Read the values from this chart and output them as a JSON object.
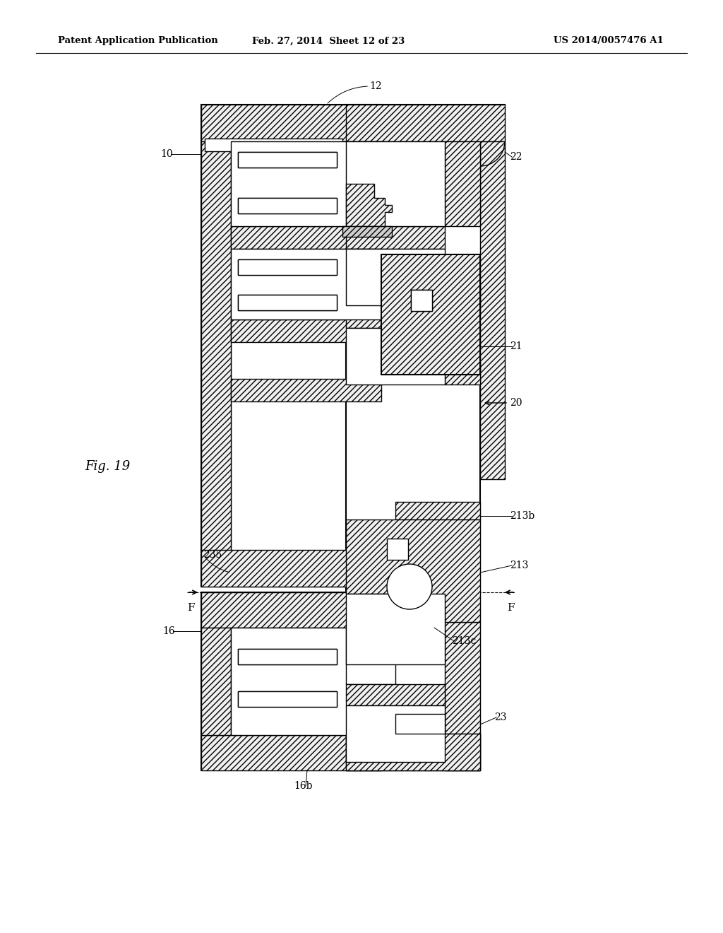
{
  "title_left": "Patent Application Publication",
  "title_mid": "Feb. 27, 2014  Sheet 12 of 23",
  "title_right": "US 2014/0057476 A1",
  "fig_label": "Fig. 19",
  "bg_color": "#ffffff",
  "line_color": "#000000",
  "hatch_color": "#555555",
  "label_fontsize": 10,
  "header_fontsize": 9.5,
  "fig_label_fontsize": 13
}
